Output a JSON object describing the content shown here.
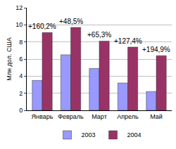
{
  "chart_data": {
    "type": "bar",
    "y_label": "Млн дол. США",
    "categories": [
      "Январь",
      "Февраль",
      "Март",
      "Апрель",
      "Май"
    ],
    "series": [
      {
        "name": "2003",
        "color": "#9999ff",
        "values": [
          3.5,
          6.5,
          4.9,
          3.2,
          2.2
        ]
      },
      {
        "name": "2004",
        "color": "#993366",
        "values": [
          9.1,
          9.7,
          8.1,
          7.4,
          6.4
        ]
      }
    ],
    "annotations": [
      {
        "x": "Январь",
        "text": "+160,2%"
      },
      {
        "x": "Февраль",
        "text": "+48,5%"
      },
      {
        "x": "Март",
        "text": "+65,3%"
      },
      {
        "x": "Апрель",
        "text": "+127,4%"
      },
      {
        "x": "Май",
        "text": "+194,9%"
      }
    ],
    "ylim": [
      0,
      12
    ],
    "yticks": [
      0,
      2,
      4,
      6,
      8,
      10,
      12
    ],
    "grid": true,
    "legend": "bottom"
  }
}
